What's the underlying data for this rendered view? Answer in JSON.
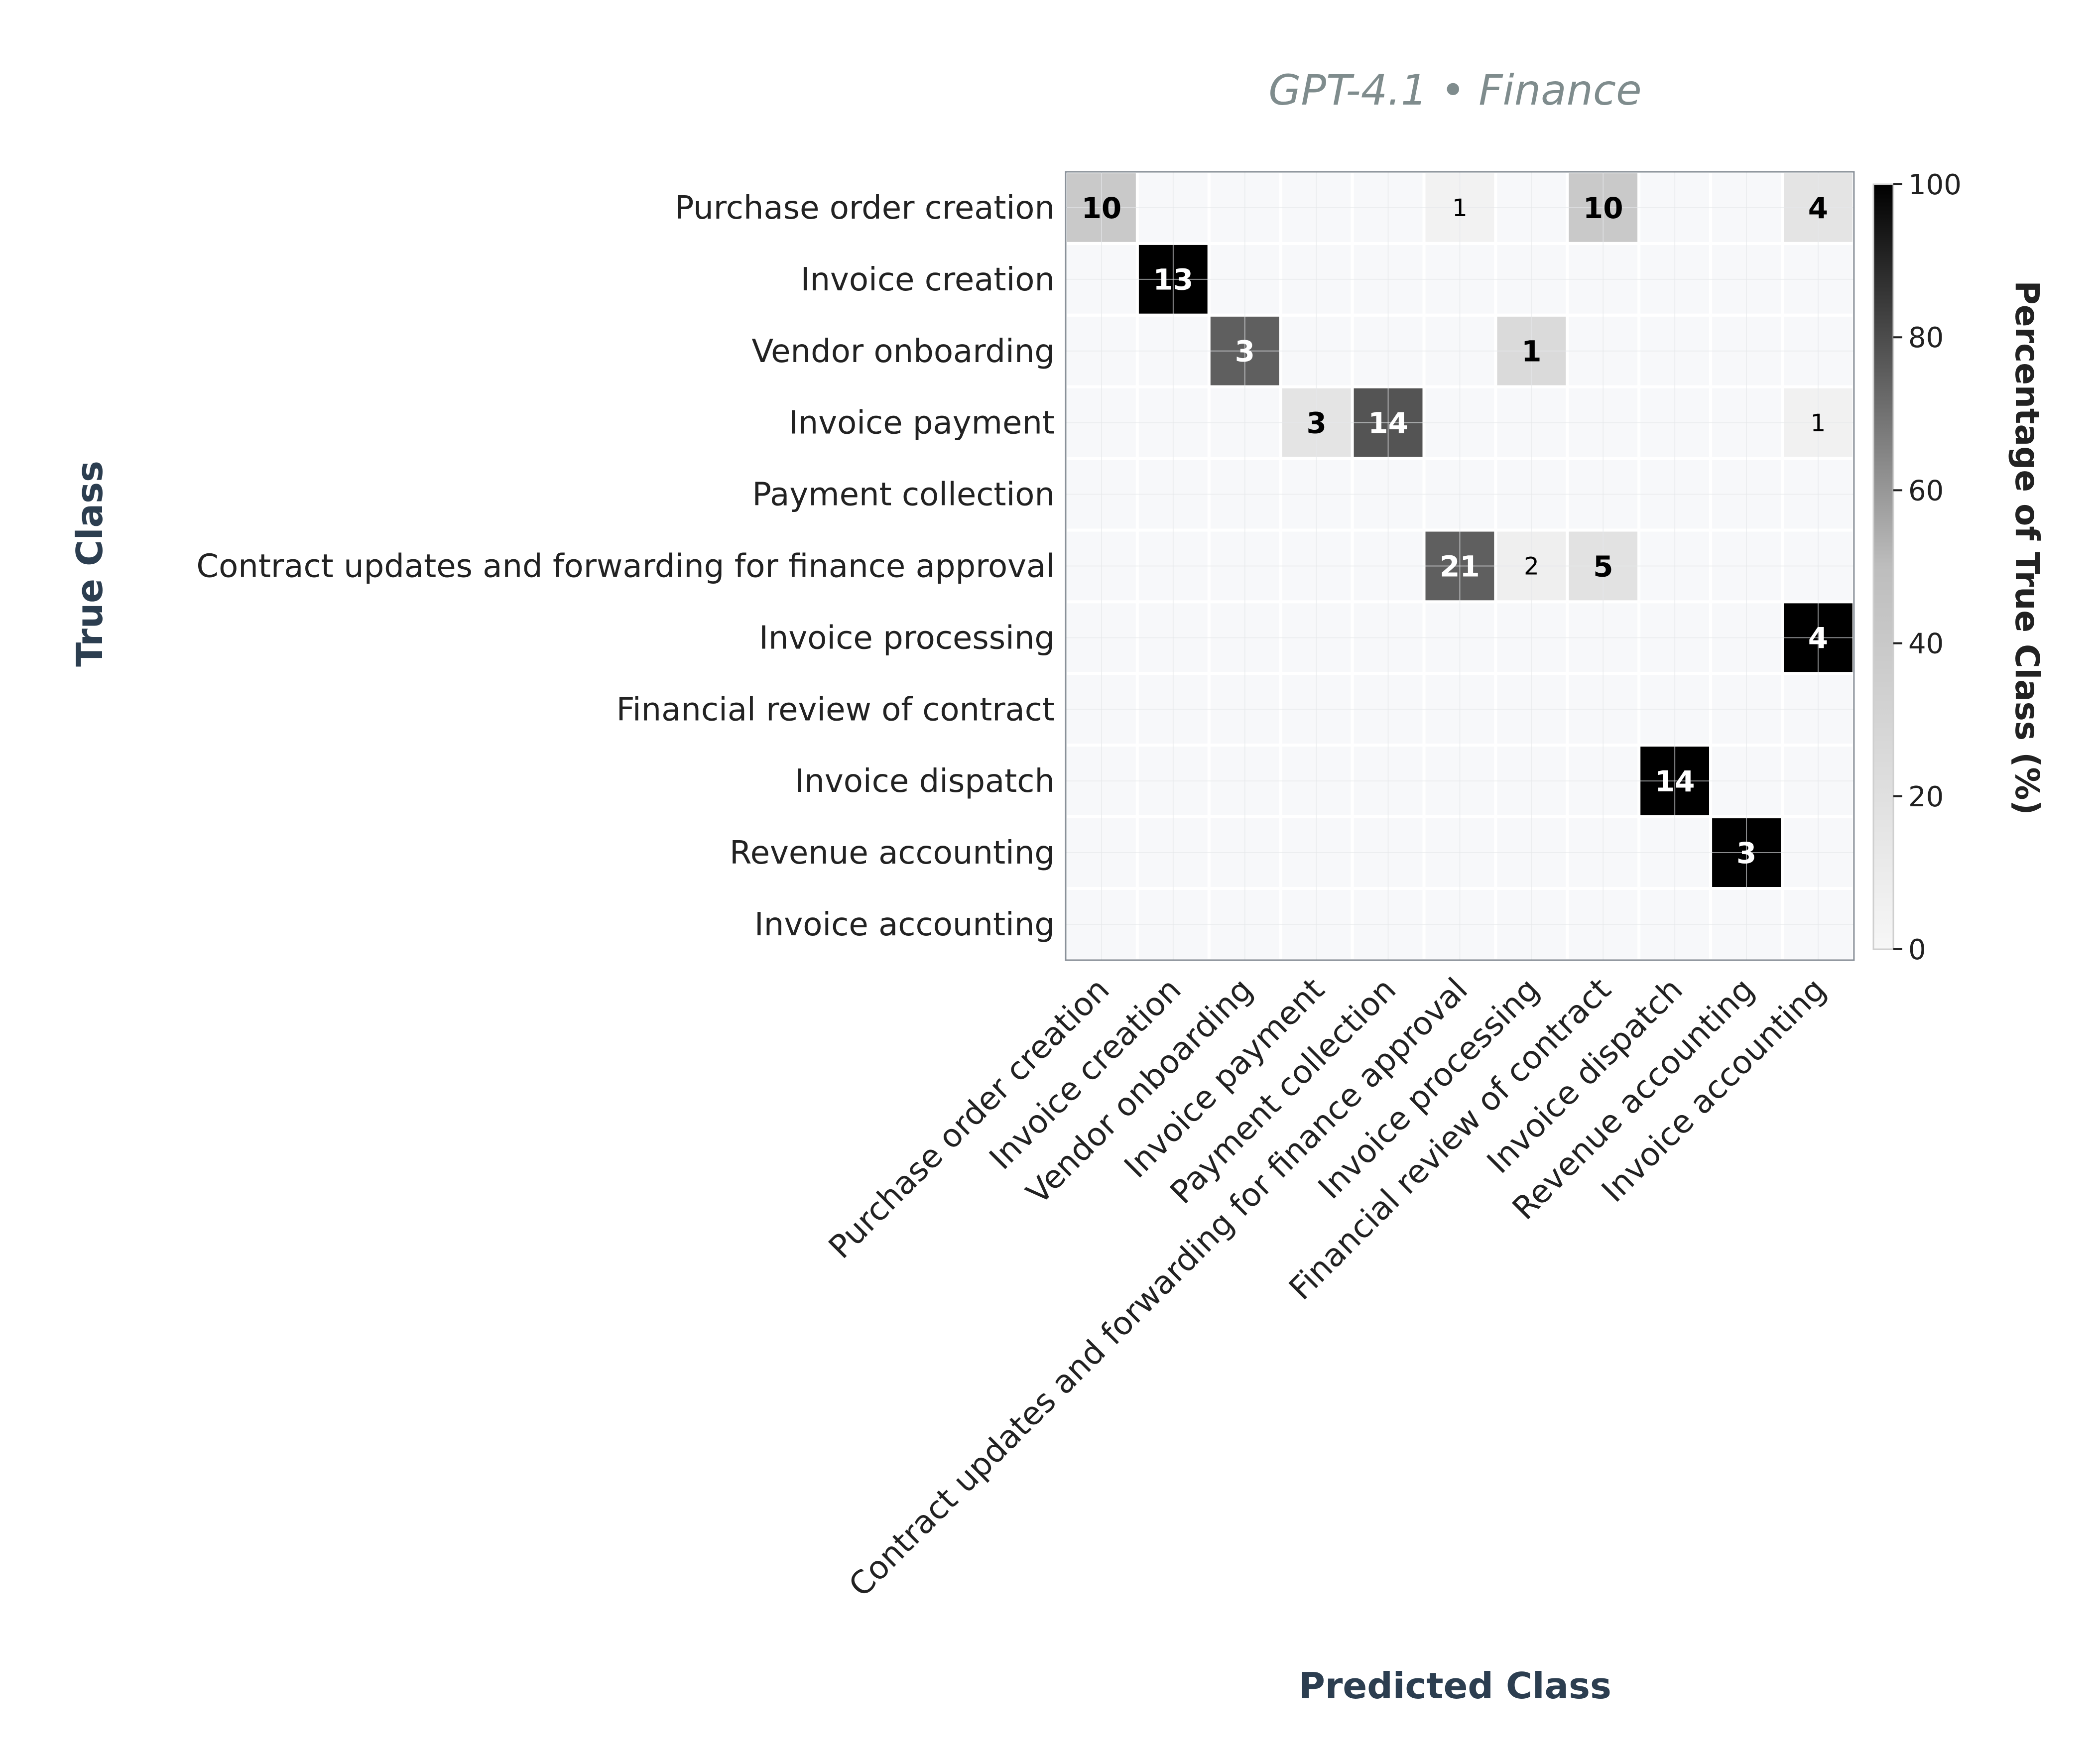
{
  "chart_data": {
    "type": "heatmap",
    "title": "GPT-4.1 • Finance",
    "xlabel": "Predicted Class",
    "ylabel": "True Class",
    "colorbar_label": "Percentage of True Class (%)",
    "colorbar_ticks": [
      "0",
      "20",
      "40",
      "60",
      "80",
      "100"
    ],
    "colorbar_range": [
      0,
      100
    ],
    "colormap": [
      "#f7f7f7",
      "#bdbdbd",
      "#000000"
    ],
    "rows": [
      "Purchase order creation",
      "Invoice creation",
      "Vendor onboarding",
      "Invoice payment",
      "Payment collection",
      "Contract updates and forwarding for finance approval",
      "Invoice processing",
      "Financial review of contract",
      "Invoice dispatch",
      "Revenue accounting",
      "Invoice accounting"
    ],
    "columns": [
      "Purchase order creation",
      "Invoice creation",
      "Vendor onboarding",
      "Invoice payment",
      "Payment collection",
      "Contract updates and forwarding for finance approval",
      "Invoice processing",
      "Financial review of contract",
      "Invoice dispatch",
      "Revenue accounting",
      "Invoice accounting"
    ],
    "counts": [
      [
        10,
        0,
        0,
        0,
        0,
        1,
        0,
        10,
        0,
        0,
        4
      ],
      [
        0,
        13,
        0,
        0,
        0,
        0,
        0,
        0,
        0,
        0,
        0
      ],
      [
        0,
        0,
        3,
        0,
        0,
        0,
        1,
        0,
        0,
        0,
        0
      ],
      [
        0,
        0,
        0,
        3,
        14,
        0,
        0,
        0,
        0,
        0,
        1
      ],
      [
        0,
        0,
        0,
        0,
        0,
        0,
        0,
        0,
        0,
        0,
        0
      ],
      [
        0,
        0,
        0,
        0,
        0,
        21,
        2,
        5,
        0,
        0,
        0
      ],
      [
        0,
        0,
        0,
        0,
        0,
        0,
        0,
        0,
        0,
        0,
        4
      ],
      [
        0,
        0,
        0,
        0,
        0,
        0,
        0,
        0,
        0,
        0,
        0
      ],
      [
        0,
        0,
        0,
        0,
        0,
        0,
        0,
        0,
        14,
        0,
        0
      ],
      [
        0,
        0,
        0,
        0,
        0,
        0,
        0,
        0,
        0,
        3,
        0
      ],
      [
        0,
        0,
        0,
        0,
        0,
        0,
        0,
        0,
        0,
        0,
        0
      ]
    ],
    "grid": true
  },
  "colors": {
    "title": "#7f8c8d",
    "axis_title": "#2c3e50",
    "empty_cell": "#f7f8fa",
    "grid_line": "#e6e8eb",
    "cell_border": "#ffffff",
    "frame": "#8a9199"
  }
}
